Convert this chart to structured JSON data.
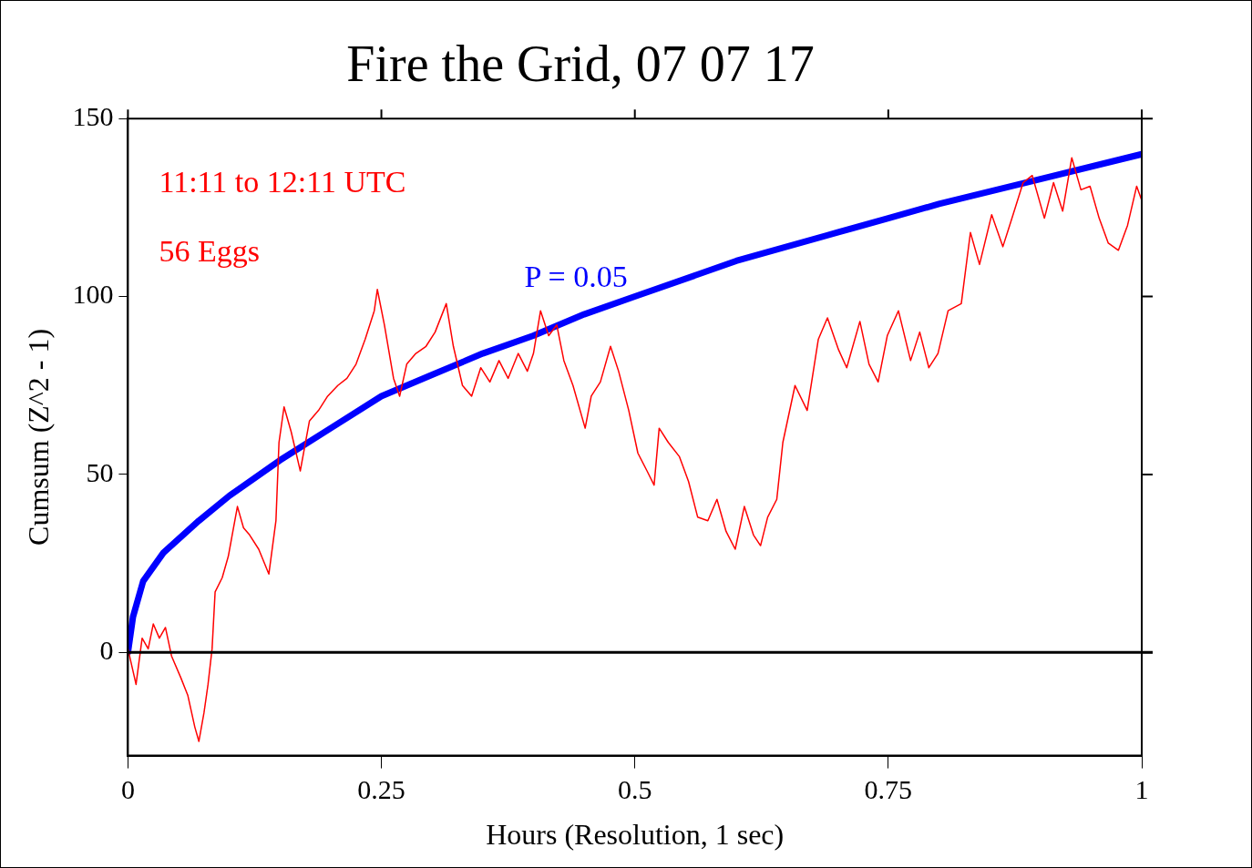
{
  "chart_data": {
    "type": "line",
    "title": "Fire the Grid, 07 07 17",
    "xlabel": "Hours (Resolution, 1 sec)",
    "ylabel": "Cumsum (Z^2 - 1)",
    "xlim": [
      0,
      1
    ],
    "xticks": [
      0,
      0.25,
      0.5,
      0.75,
      1
    ],
    "ylim": [
      -29,
      150
    ],
    "yticks": [
      0,
      50,
      100,
      150
    ],
    "grid": false,
    "legend": false,
    "marker": "none",
    "line_style": "solid",
    "annotations": [
      "11:11 to 12:11 UTC",
      "56 Eggs"
    ],
    "ref_lines": [
      {
        "axis": "y",
        "value": 0,
        "color": "#000000"
      }
    ],
    "series": [
      {
        "color": "#ff0000",
        "x": [
          0,
          0.008,
          0.014,
          0.02,
          0.025,
          0.031,
          0.037,
          0.043,
          0.052,
          0.059,
          0.066,
          0.07,
          0.075,
          0.079,
          0.083,
          0.086,
          0.093,
          0.099,
          0.108,
          0.114,
          0.12,
          0.129,
          0.139,
          0.146,
          0.149,
          0.154,
          0.161,
          0.17,
          0.179,
          0.188,
          0.197,
          0.207,
          0.216,
          0.225,
          0.234,
          0.243,
          0.246,
          0.253,
          0.262,
          0.268,
          0.275,
          0.284,
          0.294,
          0.303,
          0.314,
          0.321,
          0.33,
          0.339,
          0.348,
          0.357,
          0.366,
          0.375,
          0.385,
          0.394,
          0.4,
          0.407,
          0.415,
          0.423,
          0.43,
          0.439,
          0.451,
          0.457,
          0.466,
          0.476,
          0.484,
          0.494,
          0.503,
          0.512,
          0.519,
          0.524,
          0.533,
          0.544,
          0.553,
          0.562,
          0.572,
          0.581,
          0.59,
          0.599,
          0.608,
          0.617,
          0.624,
          0.631,
          0.64,
          0.646,
          0.658,
          0.67,
          0.681,
          0.69,
          0.701,
          0.709,
          0.722,
          0.731,
          0.74,
          0.749,
          0.76,
          0.772,
          0.781,
          0.79,
          0.799,
          0.809,
          0.822,
          0.831,
          0.84,
          0.852,
          0.863,
          0.872,
          0.883,
          0.892,
          0.904,
          0.913,
          0.922,
          0.931,
          0.94,
          0.949,
          0.958,
          0.967,
          0.977,
          0.986,
          0.995,
          1
        ],
        "values": [
          1,
          -9,
          4,
          1,
          8,
          4,
          7,
          -1,
          -7,
          -12,
          -21,
          -25,
          -17,
          -9,
          1,
          17,
          21,
          27,
          41,
          35,
          33,
          29,
          22,
          37,
          59,
          69,
          62,
          51,
          65,
          68,
          72,
          75,
          77,
          81,
          88,
          96,
          102,
          92,
          77,
          72,
          81,
          84,
          86,
          90,
          98,
          86,
          75,
          72,
          80,
          76,
          82,
          77,
          84,
          79,
          84,
          96,
          89,
          92,
          82,
          75,
          63,
          72,
          76,
          86,
          79,
          68,
          56,
          51,
          47,
          63,
          59,
          55,
          48,
          38,
          37,
          43,
          34,
          29,
          41,
          33,
          30,
          38,
          43,
          59,
          75,
          68,
          88,
          94,
          85,
          80,
          93,
          81,
          76,
          89,
          96,
          82,
          90,
          80,
          84,
          96,
          98,
          118,
          109,
          123,
          114,
          122,
          132,
          134,
          122,
          132,
          124,
          139,
          130,
          131,
          122,
          115,
          113,
          120,
          131,
          127
        ]
      },
      {
        "name": "P = 0.05",
        "color": "#0000ff",
        "x": [
          0,
          0.005,
          0.015,
          0.035,
          0.07,
          0.1,
          0.15,
          0.2,
          0.25,
          0.3,
          0.35,
          0.4,
          0.45,
          0.5,
          0.6,
          0.7,
          0.75,
          0.8,
          0.9,
          1
        ],
        "values": [
          0,
          10,
          20,
          28,
          37,
          44,
          54,
          63,
          72,
          78,
          84,
          89,
          95,
          100,
          110,
          118,
          122,
          126,
          133,
          140
        ]
      }
    ]
  }
}
